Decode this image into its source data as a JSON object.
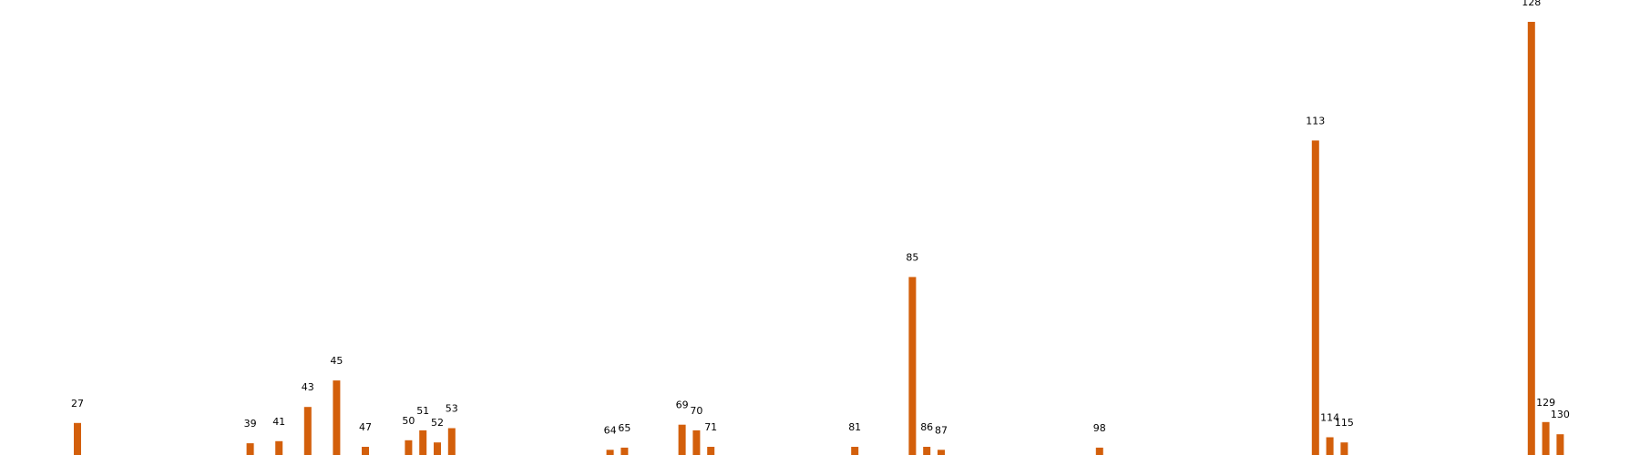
{
  "chart_data": {
    "type": "bar",
    "title": "",
    "xlabel": "",
    "ylabel": "",
    "ylim": [
      0,
      100
    ],
    "bar_color": "#d35f0b",
    "grid": false,
    "x": [
      27,
      39,
      41,
      43,
      45,
      47,
      50,
      51,
      52,
      53,
      64,
      65,
      69,
      70,
      71,
      81,
      85,
      86,
      87,
      98,
      113,
      114,
      115,
      128,
      129,
      130
    ],
    "labels": [
      "27",
      "39",
      "41",
      "43",
      "45",
      "47",
      "50",
      "51",
      "52",
      "53",
      "64",
      "65",
      "69",
      "70",
      "71",
      "81",
      "85",
      "86",
      "87",
      "98",
      "113",
      "114",
      "115",
      "128",
      "129",
      "130"
    ],
    "values": [
      7.4,
      2.7,
      3.2,
      11.1,
      17.2,
      1.9,
      3.4,
      5.7,
      2.9,
      6.2,
      1.2,
      1.7,
      7.0,
      5.7,
      1.9,
      1.9,
      41.1,
      1.9,
      1.2,
      1.7,
      72.6,
      4.1,
      2.9,
      100,
      7.6,
      4.8
    ]
  }
}
